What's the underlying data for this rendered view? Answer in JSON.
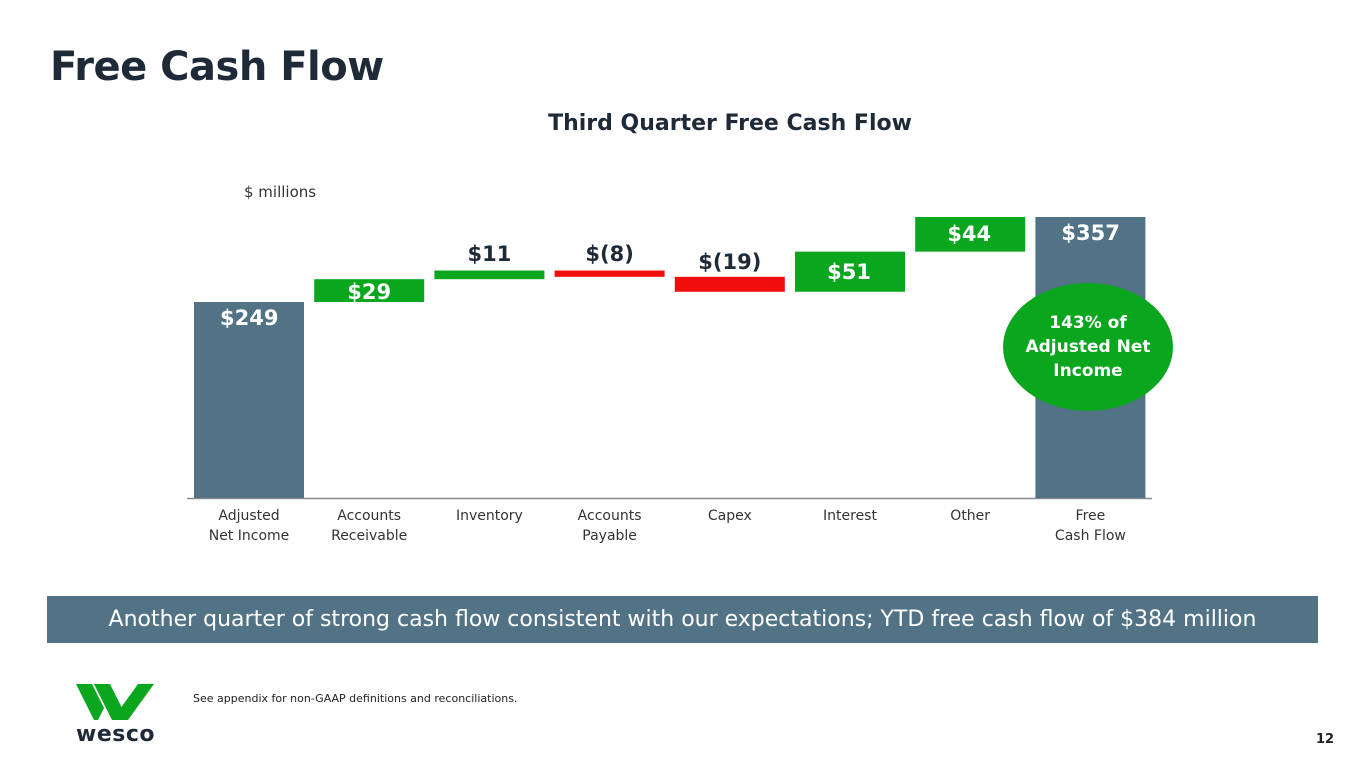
{
  "page": {
    "title": "Free Cash Flow",
    "banner": "Another quarter of strong cash flow consistent with our expectations; YTD free cash flow of $384 million",
    "footnote": "See appendix for non-GAAP definitions and reconciliations.",
    "page_number": "12",
    "logo_text": "wesco"
  },
  "chart_data": {
    "type": "waterfall",
    "title": "Third Quarter Free Cash Flow",
    "units": "$ millions",
    "categories": [
      "Adjusted\nNet Income",
      "Accounts\nReceivable",
      "Inventory",
      "Accounts\nPayable",
      "Capex",
      "Interest",
      "Other",
      "Free\nCash Flow"
    ],
    "values": [
      249,
      29,
      11,
      -8,
      -19,
      51,
      44,
      357
    ],
    "kinds": [
      "total",
      "delta",
      "delta",
      "delta",
      "delta",
      "delta",
      "delta",
      "total"
    ],
    "labels": [
      "$249",
      "$29",
      "$11",
      "$(8)",
      "$(19)",
      "$51",
      "$44",
      "$357"
    ],
    "ylim": [
      0,
      357
    ],
    "callout": "143% of Adjusted Net Income",
    "colors": {
      "total": "#527386",
      "increase": "#0aa61e",
      "decrease": "#f20d0d"
    }
  }
}
